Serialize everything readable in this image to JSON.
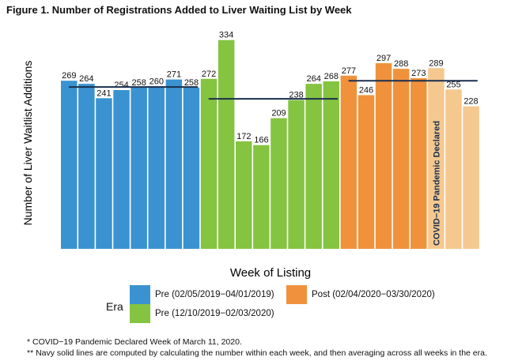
{
  "figure": {
    "title": "Figure 1.  Number of Registrations Added to Liver Waiting List by Week"
  },
  "chart_data": {
    "type": "bar",
    "xlabel": "Week of Listing",
    "ylabel": "Number of Liver Waitlist Additions",
    "ylim": [
      0,
      340
    ],
    "grid": false,
    "legend": {
      "title": "Era",
      "placement": "bottom",
      "entries": [
        {
          "label": "Pre (02/05/2019−04/01/2019)",
          "color": "#3a93d0"
        },
        {
          "label": "Pre (12/10/2019−02/03/2020)",
          "color": "#84c441"
        },
        {
          "label": "Post (02/04/2020−03/30/2020)",
          "color": "#f0923c"
        }
      ]
    },
    "series": [
      {
        "name": "Pre (02/05/2019−04/01/2019)",
        "color": "#3a93d0",
        "values": [
          269,
          264,
          241,
          254,
          258,
          260,
          271,
          258
        ],
        "mean_line": 259
      },
      {
        "name": "Pre (12/10/2019−02/03/2020)",
        "color": "#84c441",
        "values": [
          272,
          334,
          172,
          166,
          209,
          238,
          264,
          268
        ],
        "mean_line": 240
      },
      {
        "name": "Post (02/04/2020−03/30/2020)",
        "color": "#f0923c",
        "light_color": "#f5c88f",
        "values": [
          277,
          246,
          297,
          288,
          273,
          289,
          255,
          228
        ],
        "light_from_index": 5,
        "mean_line": 269
      }
    ],
    "annotation": {
      "text": "COVID−19 Pandemic Declared",
      "series_index": 2,
      "bar_index": 5
    },
    "mean_line_color": "#1b2f4f"
  },
  "footnotes": [
    "* COVID−19 Pandemic Declared Week of March 11, 2020.",
    "** Navy solid lines are computed by calculating the number within each week, and then averaging across all weeks in the era."
  ]
}
